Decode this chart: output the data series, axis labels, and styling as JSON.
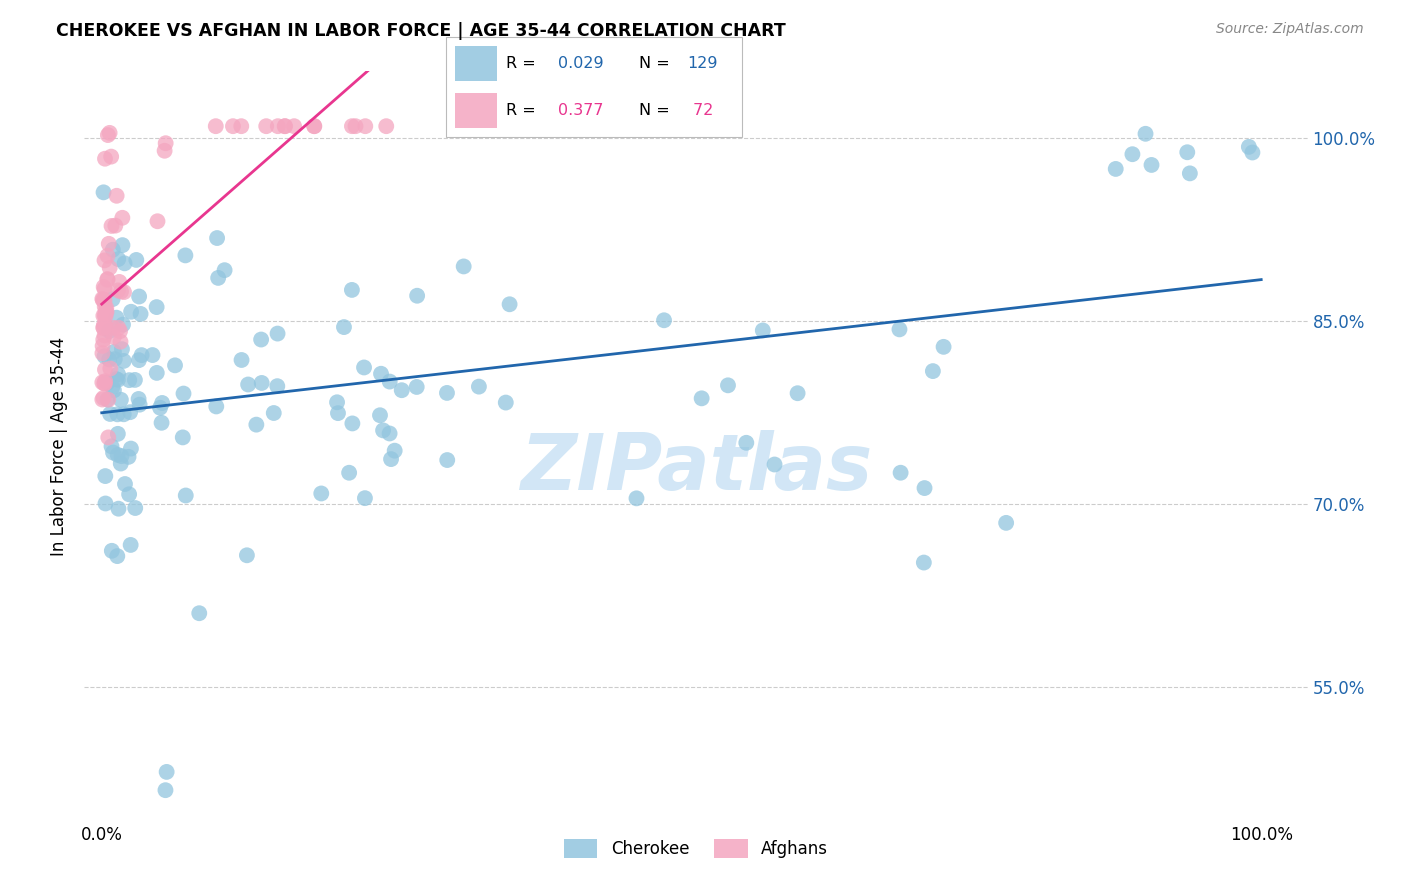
{
  "title": "CHEROKEE VS AFGHAN IN LABOR FORCE | AGE 35-44 CORRELATION CHART",
  "source": "Source: ZipAtlas.com",
  "ylabel": "In Labor Force | Age 35-44",
  "xlim": [
    -0.015,
    1.04
  ],
  "ylim": [
    0.44,
    1.055
  ],
  "yticks": [
    0.55,
    0.7,
    0.85,
    1.0
  ],
  "ytick_labels": [
    "55.0%",
    "70.0%",
    "85.0%",
    "100.0%"
  ],
  "xtick_labels": [
    "0.0%",
    "100.0%"
  ],
  "xtick_positions": [
    0.0,
    1.0
  ],
  "legend_r_cherokee": "0.029",
  "legend_n_cherokee": "129",
  "legend_r_afghan": "0.377",
  "legend_n_afghan": " 72",
  "cherokee_color": "#92c5de",
  "afghan_color": "#f4a6c0",
  "cherokee_line_color": "#2166ac",
  "afghan_line_color": "#e8368f",
  "watermark": "ZIPatlas",
  "watermark_color": "#cde4f5"
}
